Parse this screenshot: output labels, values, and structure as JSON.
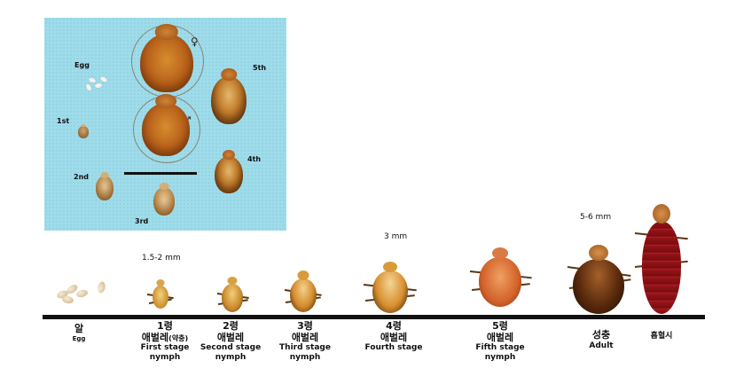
{
  "photo": {
    "labels": {
      "egg": "Egg",
      "first": "1st",
      "second": "2nd",
      "third": "3rd",
      "fourth": "4th",
      "fifth": "5th"
    },
    "female_symbol": "♀",
    "male_symbol": "♂"
  },
  "sizes": {
    "first": "1.5-2 mm",
    "fourth": "3 mm",
    "adult": "5-6 mm"
  },
  "stages": [
    {
      "ko": "알",
      "en": "Egg"
    },
    {
      "ko": "1령",
      "ko2": "애벌레",
      "ko2_small": "(약충)",
      "en": "First stage",
      "en2": "nymph"
    },
    {
      "ko": "2령",
      "ko2": "애벌레",
      "en": "Second stage",
      "en2": "nymph"
    },
    {
      "ko": "3령",
      "ko2": "애벌레",
      "en": "Third stage",
      "en2": "nymph"
    },
    {
      "ko": "4령",
      "ko2": "애벌레",
      "en": "Fourth stage",
      "en2": "nymph"
    },
    {
      "ko": "5령",
      "ko2": "애벌레",
      "en": "Fifth stage",
      "en2": "nymph"
    },
    {
      "ko": "성충",
      "en": "Adult"
    },
    {
      "ko": "흡혈시"
    }
  ]
}
